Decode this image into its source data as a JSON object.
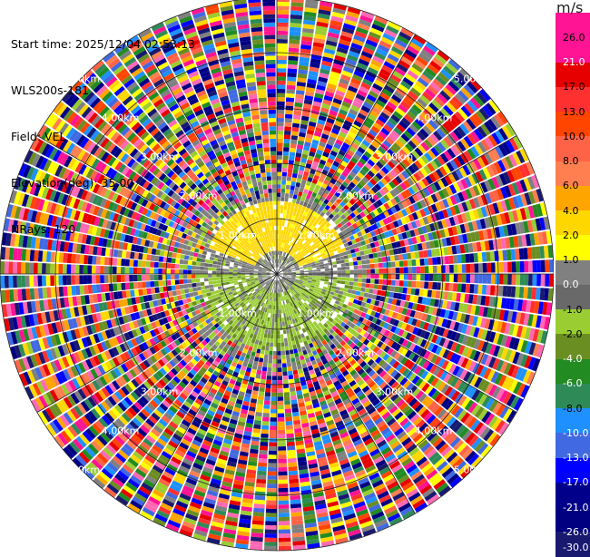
{
  "info": {
    "start_time": "Start time: 2025/12/04 02:53:13",
    "station": "WLS200s-181",
    "field": "Field: VEL",
    "elevation": "Elevation(deg): 35.00",
    "nrays": "NRays: 120"
  },
  "chart_data": {
    "type": "heatmap",
    "projection": "polar-ppi",
    "field": "VEL",
    "elevation_deg": 35.0,
    "n_rays": 120,
    "range_rings_km": [
      1.0,
      2.0,
      3.0,
      4.0,
      5.0
    ],
    "range_labels": [
      "1.00km",
      "2.00km",
      "3.00km",
      "4.00km",
      "5.00km"
    ],
    "colorbar": {
      "unit": "m/s",
      "ticks": [
        "26.0",
        "21.0",
        "17.0",
        "13.0",
        "10.0",
        "8.0",
        "6.0",
        "4.0",
        "2.0",
        "1.0",
        "0.0",
        "-1.0",
        "-2.0",
        "-4.0",
        "-6.0",
        "-8.0",
        "-10.0",
        "-13.0",
        "-17.0",
        "-21.0",
        "-26.0",
        "-30.0"
      ],
      "colors": [
        "#ff1493",
        "#ff1493",
        "#e60000",
        "#ff3030",
        "#ff4500",
        "#ff6347",
        "#ff7f50",
        "#ffa500",
        "#ffd700",
        "#ffff00",
        "#808080",
        "#696969",
        "#9acd32",
        "#6b8e23",
        "#228b22",
        "#2e8b57",
        "#1e90ff",
        "#4169e1",
        "#0000ff",
        "#00008b",
        "#000080",
        "#191970"
      ]
    }
  }
}
